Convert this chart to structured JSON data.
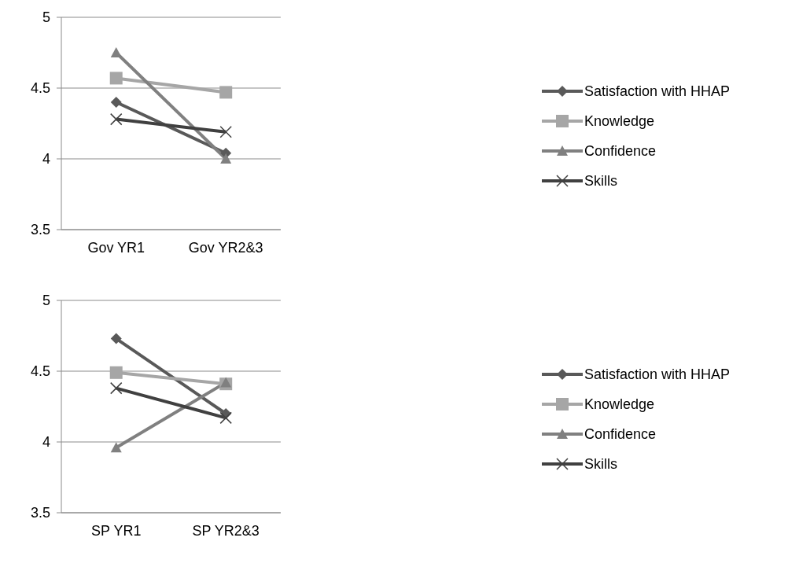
{
  "chart_data": [
    {
      "type": "line",
      "categories": [
        "Gov YR1",
        "Gov YR2&3"
      ],
      "ylim": [
        3.5,
        5
      ],
      "yticks": [
        3.5,
        4,
        4.5,
        5
      ],
      "grid": "y",
      "legend": "right",
      "series": [
        {
          "name": "Satisfaction with HHAP",
          "color": "#595959",
          "marker": "diamond",
          "values": [
            4.4,
            4.04
          ]
        },
        {
          "name": "Knowledge",
          "color": "#a6a6a6",
          "marker": "square",
          "values": [
            4.57,
            4.47
          ]
        },
        {
          "name": "Confidence",
          "color": "#808080",
          "marker": "triangle",
          "values": [
            4.75,
            4.0
          ]
        },
        {
          "name": "Skills",
          "color": "#404040",
          "marker": "cross",
          "values": [
            4.28,
            4.19
          ]
        }
      ]
    },
    {
      "type": "line",
      "categories": [
        "SP YR1",
        "SP YR2&3"
      ],
      "ylim": [
        3.5,
        5
      ],
      "yticks": [
        3.5,
        4,
        4.5,
        5
      ],
      "grid": "y",
      "legend": "right",
      "series": [
        {
          "name": "Satisfaction with HHAP",
          "color": "#595959",
          "marker": "diamond",
          "values": [
            4.73,
            4.2
          ]
        },
        {
          "name": "Knowledge",
          "color": "#a6a6a6",
          "marker": "square",
          "values": [
            4.49,
            4.41
          ]
        },
        {
          "name": "Confidence",
          "color": "#808080",
          "marker": "triangle",
          "values": [
            3.96,
            4.42
          ]
        },
        {
          "name": "Skills",
          "color": "#404040",
          "marker": "cross",
          "values": [
            4.38,
            4.17
          ]
        }
      ]
    }
  ]
}
